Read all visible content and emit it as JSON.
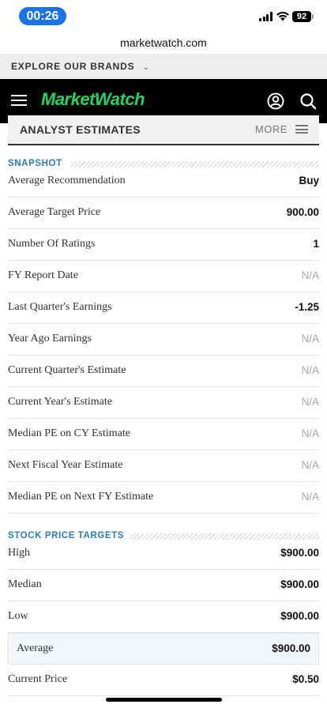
{
  "status_bar": {
    "time": "00:26",
    "battery": "92"
  },
  "browser": {
    "url": "marketwatch.com"
  },
  "explore": {
    "label": "EXPLORE OUR BRANDS"
  },
  "header": {
    "logo": "MarketWatch"
  },
  "estimates": {
    "title": "ANALYST ESTIMATES",
    "more_label": "MORE"
  },
  "snapshot": {
    "heading": "SNAPSHOT",
    "rows": [
      {
        "label": "Average Recommendation",
        "value": "Buy"
      },
      {
        "label": "Average Target Price",
        "value": "900.00"
      },
      {
        "label": "Number Of Ratings",
        "value": "1"
      },
      {
        "label": "FY Report Date",
        "value": "N/A"
      },
      {
        "label": "Last Quarter's Earnings",
        "value": "-1.25"
      },
      {
        "label": "Year Ago Earnings",
        "value": "N/A"
      },
      {
        "label": "Current Quarter's Estimate",
        "value": "N/A"
      },
      {
        "label": "Current Year's Estimate",
        "value": "N/A"
      },
      {
        "label": "Median PE on CY Estimate",
        "value": "N/A"
      },
      {
        "label": "Next Fiscal Year Estimate",
        "value": "N/A"
      },
      {
        "label": "Median PE on Next FY Estimate",
        "value": "N/A"
      }
    ]
  },
  "targets": {
    "heading": "STOCK PRICE TARGETS",
    "rows": [
      {
        "label": "High",
        "value": "$900.00"
      },
      {
        "label": "Median",
        "value": "$900.00"
      },
      {
        "label": "Low",
        "value": "$900.00"
      },
      {
        "label": "Average",
        "value": "$900.00"
      },
      {
        "label": "Current Price",
        "value": "$0.50"
      }
    ]
  },
  "colors": {
    "logo": "#27d35b",
    "section_heading": "#2d7db3",
    "time_pill": "#1a73e8"
  }
}
